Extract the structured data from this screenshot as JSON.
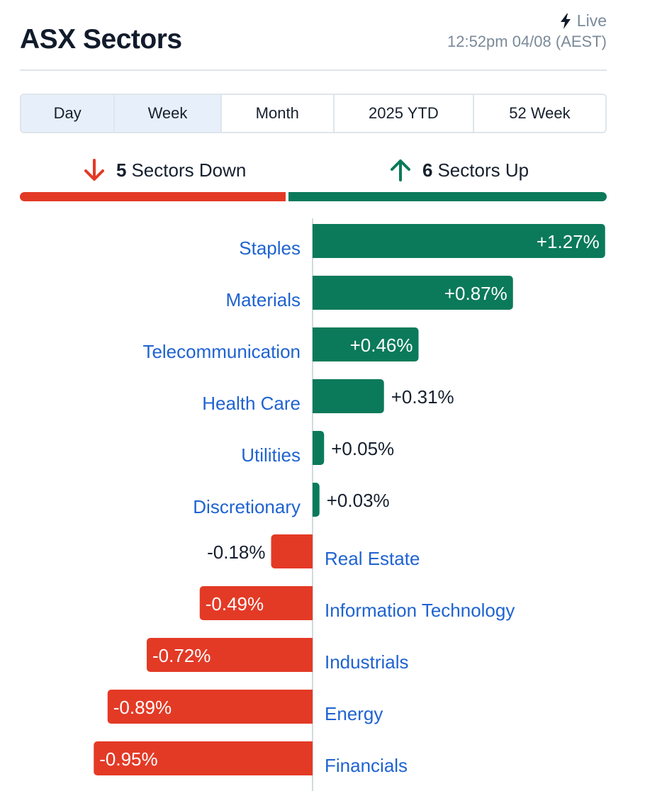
{
  "header": {
    "title": "ASX Sectors",
    "live_label": "Live",
    "timestamp": "12:52pm 04/08 (AEST)"
  },
  "tabs": [
    {
      "label": "Day",
      "active": true
    },
    {
      "label": "Week",
      "active": true
    },
    {
      "label": "Month",
      "active": false
    },
    {
      "label": "2025 YTD",
      "active": false
    },
    {
      "label": "52 Week",
      "active": false
    }
  ],
  "summary": {
    "down_count": "5",
    "down_label": "Sectors Down",
    "up_count": "6",
    "up_label": "Sectors Up"
  },
  "colors": {
    "up": "#0b7a5a",
    "down": "#e33a26",
    "link": "#1f63d0"
  },
  "chart_data": {
    "type": "bar",
    "orientation": "horizontal",
    "categories": [
      "Staples",
      "Materials",
      "Telecommunication",
      "Health Care",
      "Utilities",
      "Discretionary",
      "Real Estate",
      "Information Technology",
      "Industrials",
      "Energy",
      "Financials"
    ],
    "values": [
      1.27,
      0.87,
      0.46,
      0.31,
      0.05,
      0.03,
      -0.18,
      -0.49,
      -0.72,
      -0.89,
      -0.95
    ],
    "value_labels": [
      "+1.27%",
      "+0.87%",
      "+0.46%",
      "+0.31%",
      "+0.05%",
      "+0.03%",
      "-0.18%",
      "-0.49%",
      "-0.72%",
      "-0.89%",
      "-0.95%"
    ],
    "units": "%",
    "sorted": "descending"
  }
}
